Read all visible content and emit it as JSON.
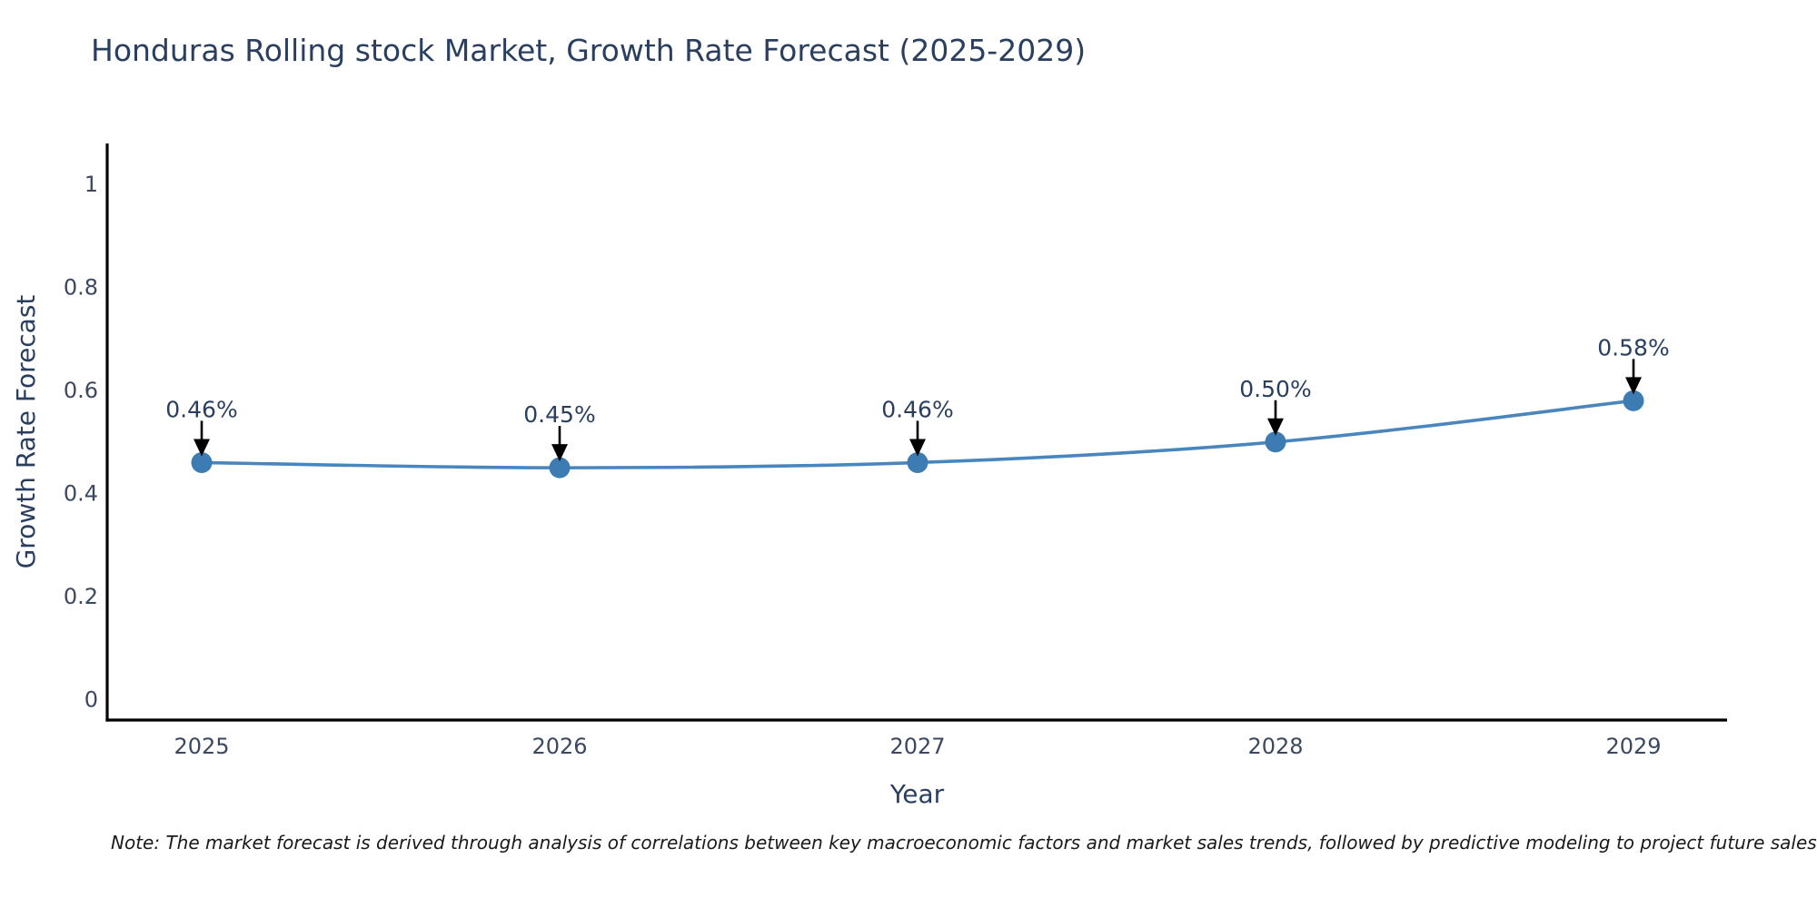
{
  "note": "Note: The market forecast is derived through analysis of correlations between key macroeconomic factors and market sales trends, followed by predictive modeling to project future sales",
  "chart_data": {
    "type": "line",
    "title": "Honduras Rolling stock Market, Growth Rate Forecast (2025-2029)",
    "x": [
      2025,
      2026,
      2027,
      2028,
      2029
    ],
    "xtick_labels": [
      "2025",
      "2026",
      "2027",
      "2028",
      "2029"
    ],
    "values": [
      0.46,
      0.45,
      0.46,
      0.5,
      0.58
    ],
    "point_labels": [
      "0.46%",
      "0.45%",
      "0.46%",
      "0.50%",
      "0.58%"
    ],
    "xlabel": "Year",
    "ylabel": "Growth Rate Forecast",
    "yticks": [
      0,
      0.2,
      0.4,
      0.6,
      0.8,
      1
    ],
    "ytick_labels": [
      "0",
      "0.2",
      "0.4",
      "0.6",
      "0.8",
      "1"
    ],
    "ylim": [
      0,
      1.08
    ],
    "grid": false,
    "legend": false,
    "colors": {
      "line": "#4886bd",
      "marker": "#3d7cb3",
      "axis": "#000000",
      "title_text": "#2a3f5f",
      "axis_title_text": "#2a3f5f",
      "tick_text": "#3b4860",
      "annotation_text": "#2a3f5f",
      "arrow": "#000000",
      "background": "#ffffff",
      "note_text": "#1a1a1a"
    }
  }
}
